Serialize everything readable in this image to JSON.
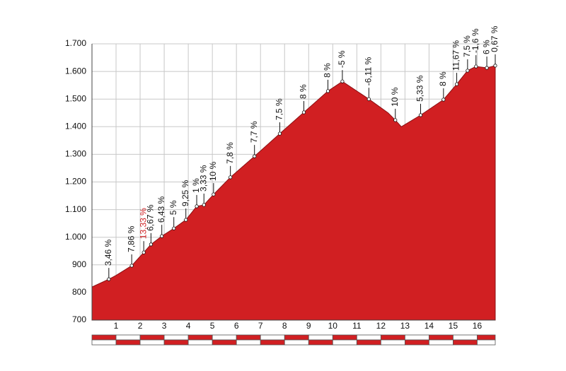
{
  "chart_data": {
    "type": "area",
    "color": "#d11f22",
    "x": [
      0,
      0.7,
      1.0,
      1.65,
      2.15,
      2.45,
      2.9,
      3.4,
      3.9,
      4.35,
      4.65,
      5.05,
      5.75,
      6.75,
      7.8,
      8.8,
      9.8,
      10.4,
      11.5,
      12.3,
      12.6,
      12.85,
      13.65,
      14.6,
      15.15,
      15.6,
      15.95,
      16.4,
      16.75
    ],
    "values": [
      820,
      848,
      862,
      897,
      945,
      974,
      1004,
      1032,
      1063,
      1112,
      1117,
      1155,
      1217,
      1293,
      1375,
      1452,
      1529,
      1564,
      1500,
      1450,
      1424,
      1400,
      1442,
      1498,
      1554,
      1603,
      1618,
      1613,
      1621
    ],
    "markers": {
      "x": [
        0.7,
        1.65,
        2.15,
        2.45,
        2.9,
        3.4,
        3.9,
        4.35,
        4.65,
        5.05,
        5.75,
        6.75,
        7.8,
        8.8,
        9.8,
        10.4,
        11.5,
        12.6,
        13.65,
        14.6,
        15.15,
        15.6,
        15.95,
        16.4,
        16.75
      ],
      "values": [
        848,
        897,
        945,
        974,
        1004,
        1032,
        1063,
        1112,
        1117,
        1155,
        1217,
        1293,
        1375,
        1452,
        1529,
        1564,
        1500,
        1424,
        1442,
        1498,
        1554,
        1603,
        1618,
        1613,
        1621
      ],
      "labels": [
        "3,46 %",
        "7,86 %",
        "13,33 %",
        "6,67 %",
        "6,43 %",
        "5 %",
        "9,25 %",
        "1 %",
        "3,33 %",
        "10 %",
        "7,8 %",
        "7,7 %",
        "7,5 %",
        "8 %",
        "8 %",
        "-5 %",
        "-6,11 %",
        "10 %",
        "5,33 %",
        "8 %",
        "11,67 %",
        "7,5 %",
        "-1,6 %",
        "6 %",
        "0,67 %"
      ],
      "label_colors": [
        "#111111",
        "#111111",
        "#d11f22",
        "#111111",
        "#111111",
        "#111111",
        "#111111",
        "#111111",
        "#111111",
        "#111111",
        "#111111",
        "#111111",
        "#111111",
        "#111111",
        "#111111",
        "#111111",
        "#111111",
        "#111111",
        "#111111",
        "#111111",
        "#111111",
        "#111111",
        "#111111",
        "#111111",
        "#111111"
      ]
    },
    "xlim": [
      0,
      16.75
    ],
    "xticks": [
      1,
      2,
      3,
      4,
      5,
      6,
      7,
      8,
      9,
      10,
      11,
      12,
      13,
      14,
      15,
      16
    ],
    "ylim": [
      700,
      1700
    ],
    "yticks": [
      700,
      800,
      900,
      {
        "value": 1000,
        "label": "1.000"
      },
      {
        "value": 1100,
        "label": "1.100"
      },
      {
        "value": 1200,
        "label": "1.200"
      },
      {
        "value": 1300,
        "label": "1.300"
      },
      {
        "value": 1400,
        "label": "1.400"
      },
      {
        "value": 1500,
        "label": "1.500"
      },
      {
        "value": 1600,
        "label": "1.600"
      },
      {
        "value": 1700,
        "label": "1.700"
      }
    ],
    "grid": true
  }
}
